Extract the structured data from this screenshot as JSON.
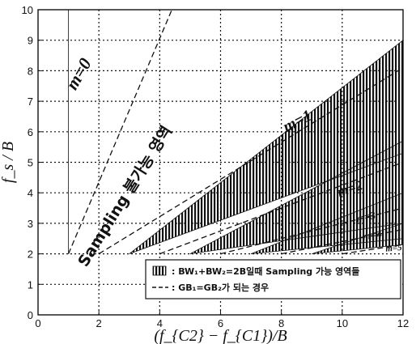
{
  "chart_data": {
    "type": "area",
    "xlabel": "(f_{C2} − f_{C1})/B",
    "ylabel": "f_s / B",
    "xlim": [
      0,
      12
    ],
    "ylim": [
      0,
      10
    ],
    "x_ticks": [
      "0",
      "2",
      "4",
      "6",
      "8",
      "10",
      "12"
    ],
    "y_ticks": [
      "0",
      "1",
      "2",
      "3",
      "4",
      "5",
      "6",
      "7",
      "8",
      "9",
      "10"
    ],
    "grid": true,
    "legend_placement": "bottom-right",
    "regions": [
      {
        "m": 0,
        "x": [
          1,
          1,
          4.5
        ],
        "y_lower": [
          2,
          10,
          10
        ],
        "y_upper": [
          10,
          10,
          10
        ]
      },
      {
        "m": 1,
        "x": [
          3,
          12,
          12
        ],
        "y_lower": [
          2,
          5.3,
          5.3
        ],
        "y_upper": [
          2,
          9.0,
          9.0
        ]
      },
      {
        "m": 2,
        "x": [
          5,
          12,
          12
        ],
        "y_lower": [
          2,
          3.0,
          3.0
        ],
        "y_upper": [
          2,
          5.7,
          5.7
        ]
      },
      {
        "m": 3,
        "x": [
          7,
          12,
          12
        ],
        "y_lower": [
          2,
          2.5,
          2.5
        ],
        "y_upper": [
          2,
          4.0,
          4.0
        ]
      },
      {
        "m": 4,
        "x": [
          9,
          12,
          12
        ],
        "y_lower": [
          2,
          2.3,
          2.3
        ],
        "y_upper": [
          2,
          3.0,
          3.0
        ]
      }
    ],
    "dashed_lines": [
      {
        "name": "m=0",
        "x": [
          1,
          4.4
        ],
        "y": [
          2,
          10
        ]
      },
      {
        "name": "m=1",
        "x": [
          2,
          12
        ],
        "y": [
          2,
          8.1
        ]
      },
      {
        "name": "m=2",
        "x": [
          4,
          12
        ],
        "y": [
          2,
          5.0
        ]
      },
      {
        "name": "m=3",
        "x": [
          6,
          12
        ],
        "y": [
          2,
          3.5
        ]
      },
      {
        "name": "m=4",
        "x": [
          8,
          12
        ],
        "y": [
          2,
          2.8
        ]
      },
      {
        "name": "m=5",
        "x": [
          10,
          12
        ],
        "y": [
          2,
          2.3
        ]
      }
    ],
    "labels": [
      {
        "text": "m=0",
        "x": 1.5,
        "y": 7.8,
        "size": 22,
        "rot": -60
      },
      {
        "text": "m=1",
        "x": 8.6,
        "y": 6.2,
        "size": 20,
        "rot": -27
      },
      {
        "text": "m=2",
        "x": 10.3,
        "y": 4.0,
        "size": 17,
        "rot": -18
      },
      {
        "text": "m=3",
        "x": 10.8,
        "y": 3.1,
        "size": 13,
        "rot": -12
      },
      {
        "text": "m=4",
        "x": 11.0,
        "y": 2.5,
        "size": 13,
        "rot": -9
      },
      {
        "text": "m=5",
        "x": 11.7,
        "y": 2.1,
        "size": 11,
        "rot": -5
      }
    ],
    "region_annotation": "Sampling 불가능 영역",
    "legend": [
      {
        "symbol": "hatch",
        "text": ": BW₁+BW₂=2B일때 Sampling 가능 영역들"
      },
      {
        "symbol": "dashed",
        "text": ": GB₁=GB₂가 되는 경우"
      }
    ]
  },
  "colors": {
    "hatch": "#111111",
    "background": "#ffffff",
    "grid": "#111111"
  }
}
